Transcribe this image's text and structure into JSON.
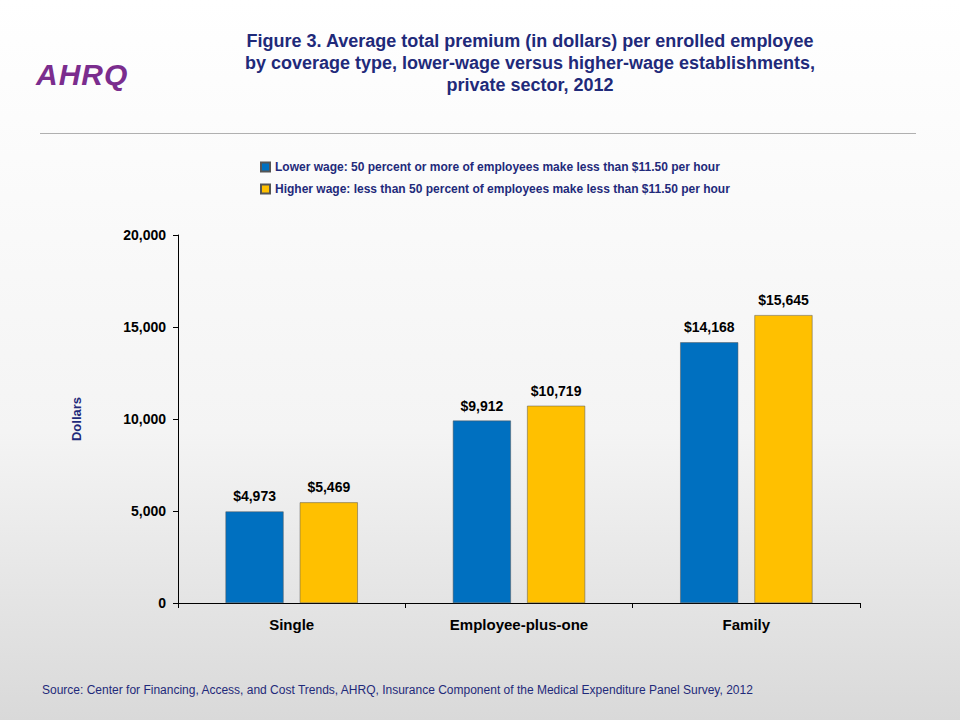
{
  "logo": "AHRQ",
  "chart_data": {
    "type": "bar",
    "title": "Figure 3. Average total premium (in dollars) per enrolled employee by coverage type, lower-wage versus higher-wage establishments, private sector, 2012",
    "y_label": "Dollars",
    "source": "Source: Center for Financing, Access, and Cost Trends, AHRQ, Insurance Component of the Medical Expenditure Panel Survey, 2012",
    "categories": [
      "Single",
      "Employee-plus-one",
      "Family"
    ],
    "series": [
      {
        "name": "Lower wage: 50 percent or more of employees make less than $11.50 per hour",
        "color": "#0070c0",
        "values": [
          4973,
          9912,
          14168
        ],
        "value_labels": [
          "$4,973",
          "$9,912",
          "$14,168"
        ]
      },
      {
        "name": "Higher wage: less than 50 percent of employees make less than $11.50 per hour",
        "color": "#ffc000",
        "values": [
          5469,
          10719,
          15645
        ],
        "value_labels": [
          "$5,469",
          "$10,719",
          "$15,645"
        ]
      }
    ],
    "ylim": [
      0,
      20000
    ],
    "yticks": [
      0,
      {
        "value": 5000,
        "label": "5,000"
      },
      {
        "value": 10000,
        "label": "10,000"
      },
      {
        "value": 15000,
        "label": "15,000"
      },
      {
        "value": 20000,
        "label": "20,000"
      }
    ],
    "grid": false,
    "legend": "top",
    "data_labels": true
  }
}
